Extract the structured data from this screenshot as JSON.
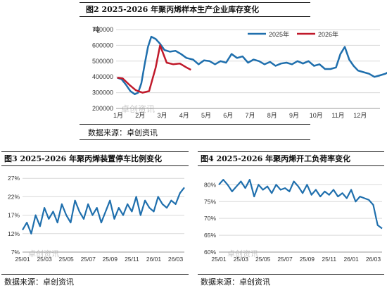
{
  "panel_top": {
    "title": "图2 2025-2026 年聚丙烯样本生产企业库存变化",
    "unit": "吨",
    "source": "数据来源：卓创资讯",
    "watermark": "卓创资讯"
  },
  "panel_bl": {
    "title": "图3 2025-2026 年聚丙烯装置停车比例变化",
    "source": "数据来源：卓创资讯",
    "watermark": "卓创资讯"
  },
  "panel_br": {
    "title": "图4 2025-2026 年聚丙烯开工负荷率变化",
    "source": "数据来源：卓创资讯",
    "watermark": "卓创资讯"
  },
  "colors": {
    "s2025": "#1f6fad",
    "s2026": "#c0192a",
    "grid": "#d9d9d9",
    "axis": "#999999"
  },
  "chart_data": [
    {
      "type": "line",
      "title": "图2 2025-2026 年聚丙烯样本生产企业库存变化",
      "ylabel": "吨",
      "ylim": [
        200000,
        700000
      ],
      "yticks": [
        "200000",
        "300000",
        "400000",
        "500000",
        "600000",
        "700000"
      ],
      "categories": [
        "1月",
        "2月",
        "3月",
        "4月",
        "5月",
        "6月",
        "7月",
        "8月",
        "9月",
        "10月",
        "11月",
        "12月"
      ],
      "xmax": 12,
      "legend": "top-right",
      "grid": true,
      "series": [
        {
          "name": "2025年",
          "color": "#1f6fad",
          "x": [
            0.05,
            0.25,
            0.45,
            0.65,
            0.85,
            1.0,
            1.15,
            1.3,
            1.45,
            1.6,
            1.8,
            2.0,
            2.2,
            2.45,
            2.7,
            2.95,
            3.2,
            3.5,
            3.75,
            4.0,
            4.25,
            4.5,
            4.75,
            5.0,
            5.25,
            5.5,
            5.75,
            6.0,
            6.25,
            6.5,
            6.75,
            7.0,
            7.25,
            7.5,
            7.75,
            8.0,
            8.25,
            8.5,
            8.75,
            9.0,
            9.25,
            9.5,
            9.75,
            10.0,
            10.2,
            10.4,
            10.6,
            10.8,
            11.0,
            11.25,
            11.5,
            11.75,
            12.0,
            12.25,
            12.5,
            12.75,
            12.95
          ],
          "y": [
            395000,
            385000,
            350000,
            310000,
            290000,
            300000,
            360000,
            480000,
            590000,
            655000,
            640000,
            610000,
            570000,
            560000,
            565000,
            545000,
            520000,
            510000,
            480000,
            505000,
            500000,
            480000,
            500000,
            490000,
            545000,
            520000,
            530000,
            490000,
            510000,
            500000,
            480000,
            495000,
            470000,
            485000,
            490000,
            480000,
            500000,
            485000,
            500000,
            470000,
            480000,
            450000,
            450000,
            460000,
            545000,
            590000,
            510000,
            470000,
            440000,
            430000,
            420000,
            400000,
            410000,
            420000,
            440000,
            420000,
            400000
          ]
        },
        {
          "name": "2026年",
          "color": "#c0192a",
          "x": [
            0.05,
            0.3,
            0.6,
            0.9,
            1.2,
            1.5,
            1.8,
            2.0,
            2.3,
            2.6,
            2.9,
            3.2,
            3.4
          ],
          "y": [
            395000,
            390000,
            350000,
            315000,
            300000,
            310000,
            460000,
            600000,
            490000,
            480000,
            485000,
            460000,
            445000
          ]
        }
      ]
    },
    {
      "type": "line",
      "title": "图3 2025-2026 年聚丙烯装置停车比例变化",
      "ylim": [
        0.07,
        0.28
      ],
      "yticks": [
        "7%",
        "12%",
        "17%",
        "22%",
        "27%"
      ],
      "categories": [
        "25/01",
        "25/03",
        "25/05",
        "25/07",
        "25/09",
        "25/11",
        "26/01",
        "26/03"
      ],
      "grid": true,
      "series": [
        {
          "name": "停车比例",
          "color": "#1f6fad",
          "x": [
            0,
            0.2,
            0.4,
            0.6,
            0.8,
            1.0,
            1.2,
            1.4,
            1.6,
            1.8,
            2.0,
            2.2,
            2.4,
            2.6,
            2.8,
            3.0,
            3.2,
            3.4,
            3.6,
            3.8,
            4.0,
            4.2,
            4.4,
            4.6,
            4.8,
            5.0,
            5.2,
            5.4,
            5.6,
            5.8,
            6.0,
            6.2,
            6.4,
            6.6,
            6.8,
            7.0,
            7.2,
            7.4
          ],
          "y": [
            0.13,
            0.15,
            0.12,
            0.17,
            0.14,
            0.19,
            0.16,
            0.18,
            0.15,
            0.2,
            0.17,
            0.15,
            0.21,
            0.18,
            0.16,
            0.2,
            0.17,
            0.19,
            0.15,
            0.18,
            0.21,
            0.16,
            0.19,
            0.17,
            0.2,
            0.18,
            0.22,
            0.17,
            0.21,
            0.19,
            0.18,
            0.22,
            0.2,
            0.19,
            0.21,
            0.2,
            0.23,
            0.245
          ]
        }
      ]
    },
    {
      "type": "line",
      "title": "图4 2025-2026 年聚丙烯开工负荷率变化",
      "ylim": [
        0.6,
        0.83
      ],
      "yticks": [
        "60%",
        "65%",
        "70%",
        "75%",
        "80%"
      ],
      "categories": [
        "25/01",
        "25/03",
        "25/05",
        "25/07",
        "25/09",
        "25/11",
        "26/01",
        "26/03"
      ],
      "grid": true,
      "series": [
        {
          "name": "开工负荷率",
          "color": "#1f6fad",
          "x": [
            0,
            0.2,
            0.4,
            0.6,
            0.8,
            1.0,
            1.2,
            1.4,
            1.6,
            1.8,
            2.0,
            2.2,
            2.4,
            2.6,
            2.8,
            3.0,
            3.2,
            3.4,
            3.6,
            3.8,
            4.0,
            4.2,
            4.4,
            4.6,
            4.8,
            5.0,
            5.2,
            5.4,
            5.6,
            5.8,
            6.0,
            6.2,
            6.4,
            6.6,
            6.8,
            7.0,
            7.2,
            7.4
          ],
          "y": [
            0.8,
            0.815,
            0.8,
            0.78,
            0.795,
            0.81,
            0.79,
            0.815,
            0.765,
            0.8,
            0.785,
            0.795,
            0.775,
            0.8,
            0.785,
            0.79,
            0.78,
            0.81,
            0.795,
            0.775,
            0.8,
            0.77,
            0.785,
            0.765,
            0.78,
            0.77,
            0.785,
            0.765,
            0.775,
            0.76,
            0.785,
            0.75,
            0.765,
            0.76,
            0.755,
            0.74,
            0.68,
            0.67
          ]
        }
      ]
    }
  ]
}
